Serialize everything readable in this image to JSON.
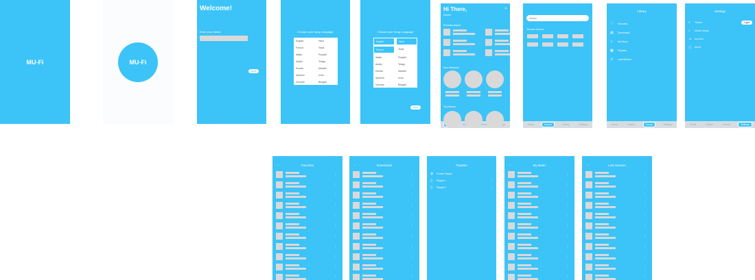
{
  "colors": {
    "primary": "#3cc3f7",
    "placeholder": "#d9d9d9"
  },
  "splash": {
    "logo": "MU-Fi"
  },
  "splash2": {
    "logo": "MU-Fi"
  },
  "welcome": {
    "title": "Welcome!",
    "prompt": "Enter your Name:",
    "name_value": "",
    "next": "Next"
  },
  "language1": {
    "title": "Choose your Song Language",
    "languages": [
      "English",
      "Hindi",
      "French",
      "Tamil",
      "Italian",
      "Punjabi",
      "Arabic",
      "Telugu",
      "Korean",
      "Marathi",
      "Spanish",
      "Urdu",
      "German",
      "Bengali"
    ]
  },
  "language2": {
    "title": "Choose your Song Language",
    "languages": [
      "English",
      "Hindi",
      "French",
      "Tamil",
      "Italian",
      "Punjabi",
      "Arabic",
      "Telugu",
      "Korean",
      "Marathi",
      "Spanish",
      "Urdu",
      "German",
      "Bengali"
    ],
    "next": "Next"
  },
  "home": {
    "greeting": "Hi There,",
    "name": "Guest",
    "section_recent": "Recently played",
    "section_new": "New Releases",
    "section_top": "Top Albums",
    "search_icon": "search-icon"
  },
  "search": {
    "placeholder": "Search",
    "section": "Browse Genres"
  },
  "library": {
    "title": "Library",
    "items": [
      {
        "label": "Favorites",
        "icon": "heart-icon"
      },
      {
        "label": "Downloads",
        "icon": "download-icon"
      },
      {
        "label": "My Music",
        "icon": "music-icon"
      },
      {
        "label": "Playlists",
        "icon": "playlist-icon"
      },
      {
        "label": "Last Session",
        "icon": "history-icon"
      }
    ]
  },
  "settings": {
    "title": "Settings",
    "items": [
      {
        "label": "Theme",
        "icon": "theme-icon",
        "value": "Light"
      },
      {
        "label": "Music Library",
        "icon": "note-icon"
      },
      {
        "label": "Account",
        "icon": "account-icon"
      },
      {
        "label": "About",
        "icon": "info-icon"
      }
    ]
  },
  "nav": [
    "Home",
    "Search",
    "Library",
    "Settings"
  ],
  "lists": [
    {
      "title": "Favorites"
    },
    {
      "title": "Downloads"
    },
    {
      "title": "My Music"
    },
    {
      "title": "Last Session"
    }
  ],
  "playlists": {
    "title": "Playlists",
    "items": [
      "Create Playlist",
      "Playlist 1",
      "Playlist 2"
    ]
  }
}
